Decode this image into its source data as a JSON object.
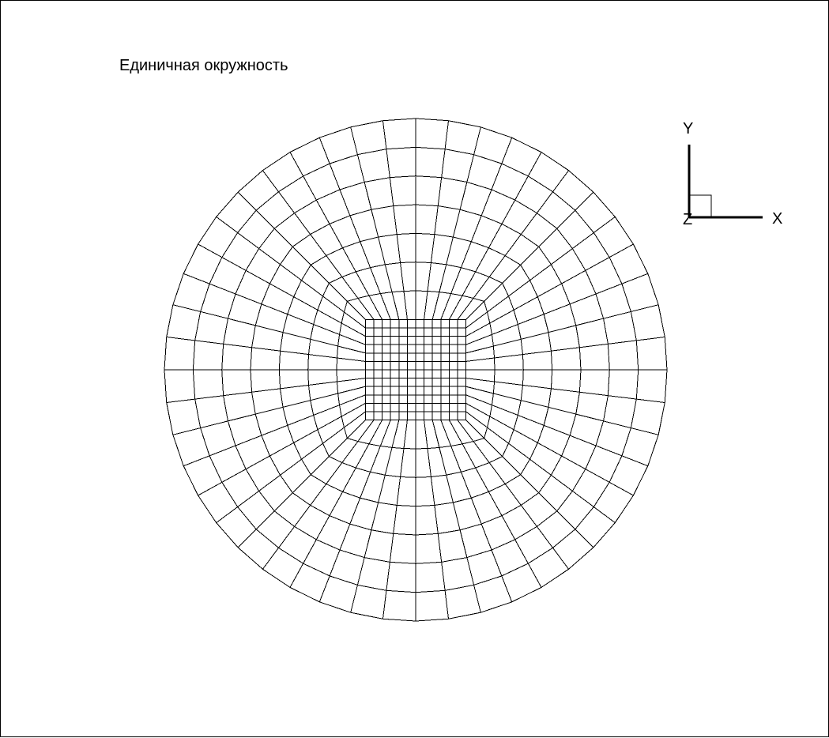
{
  "title": "Единичная окружность",
  "mesh": {
    "shape": "unit circle",
    "core": {
      "type": "square grid",
      "cells_per_side": 12,
      "half_width": 0.2
    },
    "rings": {
      "count": 7,
      "radial_divisions_per_side": 12
    },
    "circle_radius": 1.0,
    "line_color": "#000000",
    "background": "#ffffff"
  },
  "axes_triad": {
    "x_label": "X",
    "y_label": "Y",
    "z_label": "Z",
    "color": "#000000"
  }
}
